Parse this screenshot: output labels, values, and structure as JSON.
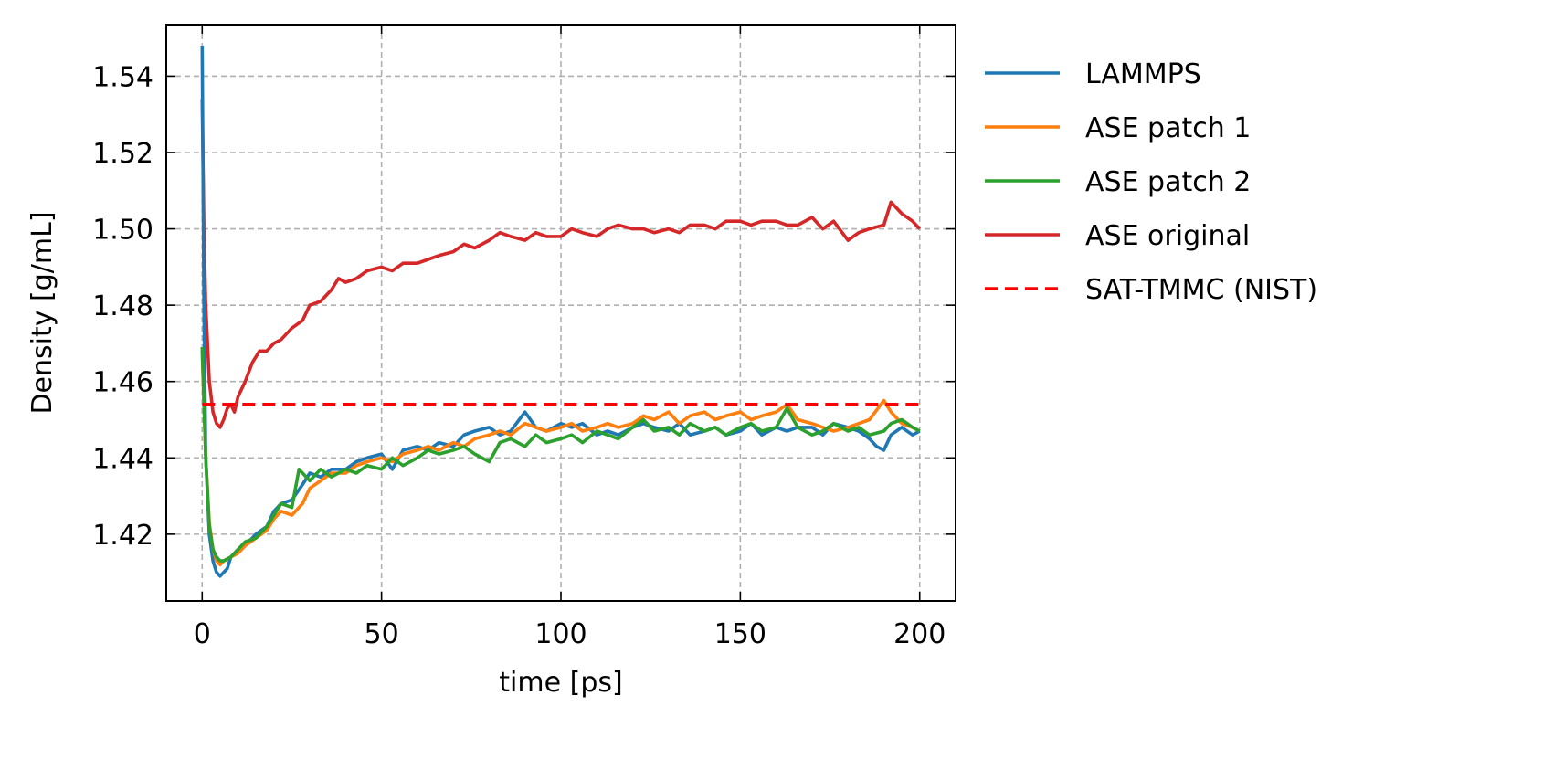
{
  "chart_data": {
    "type": "line",
    "title": "",
    "xlabel": "time [ps]",
    "ylabel": "Density [g/mL]",
    "xlim": [
      -10,
      210
    ],
    "ylim": [
      1.4025,
      1.5535
    ],
    "xticks": [
      0,
      50,
      100,
      150,
      200
    ],
    "xtick_labels": [
      "0",
      "50",
      "100",
      "150",
      "200"
    ],
    "yticks": [
      1.42,
      1.44,
      1.46,
      1.48,
      1.5,
      1.52,
      1.54
    ],
    "ytick_labels": [
      "1.42",
      "1.44",
      "1.46",
      "1.48",
      "1.50",
      "1.52",
      "1.54"
    ],
    "grid": true,
    "legend_position": "outside right, top",
    "series": [
      {
        "name": "LAMMPS",
        "color": "#1f77b4",
        "style": "solid",
        "x": [
          0,
          0.5,
          1,
          2,
          3,
          4,
          5,
          6,
          7,
          8,
          10,
          12,
          15,
          18,
          20,
          22,
          25,
          28,
          30,
          33,
          36,
          40,
          43,
          46,
          50,
          53,
          56,
          60,
          63,
          66,
          70,
          73,
          76,
          80,
          83,
          86,
          90,
          93,
          96,
          100,
          103,
          106,
          110,
          113,
          116,
          120,
          123,
          126,
          130,
          133,
          136,
          140,
          143,
          146,
          150,
          153,
          156,
          160,
          163,
          166,
          170,
          173,
          176,
          180,
          183,
          186,
          188,
          190,
          192,
          195,
          198,
          200
        ],
        "y": [
          1.548,
          1.48,
          1.44,
          1.42,
          1.413,
          1.41,
          1.409,
          1.41,
          1.411,
          1.414,
          1.416,
          1.417,
          1.42,
          1.422,
          1.426,
          1.428,
          1.429,
          1.433,
          1.436,
          1.435,
          1.437,
          1.437,
          1.439,
          1.44,
          1.441,
          1.437,
          1.442,
          1.443,
          1.442,
          1.444,
          1.443,
          1.446,
          1.447,
          1.448,
          1.446,
          1.447,
          1.452,
          1.448,
          1.447,
          1.449,
          1.448,
          1.449,
          1.446,
          1.447,
          1.446,
          1.448,
          1.449,
          1.448,
          1.447,
          1.449,
          1.446,
          1.447,
          1.448,
          1.446,
          1.447,
          1.449,
          1.446,
          1.448,
          1.447,
          1.448,
          1.448,
          1.446,
          1.449,
          1.448,
          1.447,
          1.445,
          1.443,
          1.442,
          1.446,
          1.448,
          1.446,
          1.447
        ]
      },
      {
        "name": "ASE patch 1",
        "color": "#ff7f0e",
        "style": "solid",
        "x": [
          0,
          1,
          2,
          3,
          4,
          5,
          6,
          8,
          10,
          12,
          15,
          18,
          20,
          22,
          25,
          28,
          30,
          33,
          36,
          40,
          43,
          46,
          50,
          53,
          56,
          60,
          63,
          66,
          70,
          73,
          76,
          80,
          83,
          86,
          90,
          93,
          96,
          100,
          103,
          106,
          110,
          113,
          116,
          120,
          123,
          126,
          130,
          133,
          136,
          140,
          143,
          146,
          150,
          153,
          156,
          160,
          163,
          166,
          170,
          173,
          176,
          180,
          183,
          186,
          190,
          192,
          195,
          198,
          200
        ],
        "y": [
          1.468,
          1.44,
          1.423,
          1.416,
          1.413,
          1.412,
          1.413,
          1.414,
          1.415,
          1.417,
          1.419,
          1.421,
          1.424,
          1.426,
          1.425,
          1.428,
          1.432,
          1.434,
          1.436,
          1.436,
          1.438,
          1.439,
          1.44,
          1.439,
          1.441,
          1.442,
          1.443,
          1.442,
          1.444,
          1.443,
          1.445,
          1.446,
          1.447,
          1.446,
          1.449,
          1.448,
          1.447,
          1.448,
          1.449,
          1.447,
          1.448,
          1.449,
          1.448,
          1.449,
          1.451,
          1.45,
          1.452,
          1.449,
          1.451,
          1.452,
          1.45,
          1.451,
          1.452,
          1.45,
          1.451,
          1.452,
          1.454,
          1.45,
          1.449,
          1.448,
          1.447,
          1.448,
          1.449,
          1.45,
          1.455,
          1.452,
          1.449,
          1.448,
          1.447
        ]
      },
      {
        "name": "ASE patch 2",
        "color": "#2ca02c",
        "style": "solid",
        "x": [
          0,
          1,
          2,
          3,
          4,
          5,
          6,
          8,
          10,
          12,
          15,
          18,
          20,
          22,
          25,
          27,
          30,
          33,
          36,
          40,
          43,
          46,
          50,
          53,
          56,
          60,
          63,
          66,
          70,
          73,
          76,
          80,
          83,
          86,
          90,
          93,
          96,
          100,
          103,
          106,
          110,
          113,
          116,
          120,
          123,
          126,
          130,
          133,
          136,
          140,
          143,
          146,
          150,
          153,
          156,
          160,
          163,
          166,
          170,
          173,
          176,
          180,
          183,
          186,
          190,
          192,
          195,
          198,
          200
        ],
        "y": [
          1.469,
          1.44,
          1.422,
          1.416,
          1.414,
          1.413,
          1.413,
          1.414,
          1.416,
          1.418,
          1.419,
          1.422,
          1.425,
          1.428,
          1.427,
          1.437,
          1.434,
          1.437,
          1.435,
          1.437,
          1.436,
          1.438,
          1.437,
          1.44,
          1.438,
          1.44,
          1.442,
          1.441,
          1.442,
          1.443,
          1.441,
          1.439,
          1.444,
          1.445,
          1.443,
          1.446,
          1.444,
          1.445,
          1.446,
          1.444,
          1.447,
          1.446,
          1.445,
          1.448,
          1.45,
          1.447,
          1.448,
          1.446,
          1.449,
          1.447,
          1.448,
          1.446,
          1.448,
          1.449,
          1.447,
          1.448,
          1.453,
          1.448,
          1.446,
          1.447,
          1.449,
          1.447,
          1.448,
          1.446,
          1.447,
          1.449,
          1.45,
          1.448,
          1.447
        ]
      },
      {
        "name": "ASE original",
        "color": "#d62728",
        "style": "solid",
        "x": [
          0,
          0.5,
          1,
          2,
          3,
          4,
          5,
          6,
          7,
          8,
          9,
          10,
          12,
          14,
          16,
          18,
          20,
          22,
          25,
          28,
          30,
          33,
          36,
          38,
          40,
          43,
          46,
          50,
          53,
          56,
          60,
          63,
          66,
          70,
          73,
          76,
          80,
          83,
          86,
          90,
          93,
          96,
          100,
          103,
          106,
          110,
          113,
          116,
          120,
          123,
          126,
          130,
          133,
          136,
          140,
          143,
          146,
          150,
          153,
          156,
          160,
          163,
          166,
          170,
          173,
          176,
          180,
          183,
          186,
          190,
          192,
          195,
          198,
          200
        ],
        "y": [
          1.534,
          1.5,
          1.48,
          1.46,
          1.452,
          1.449,
          1.448,
          1.45,
          1.453,
          1.454,
          1.452,
          1.456,
          1.46,
          1.465,
          1.468,
          1.468,
          1.47,
          1.471,
          1.474,
          1.476,
          1.48,
          1.481,
          1.484,
          1.487,
          1.486,
          1.487,
          1.489,
          1.49,
          1.489,
          1.491,
          1.491,
          1.492,
          1.493,
          1.494,
          1.496,
          1.495,
          1.497,
          1.499,
          1.498,
          1.497,
          1.499,
          1.498,
          1.498,
          1.5,
          1.499,
          1.498,
          1.5,
          1.501,
          1.5,
          1.5,
          1.499,
          1.5,
          1.499,
          1.501,
          1.501,
          1.5,
          1.502,
          1.502,
          1.501,
          1.502,
          1.502,
          1.501,
          1.501,
          1.503,
          1.5,
          1.502,
          1.497,
          1.499,
          1.5,
          1.501,
          1.507,
          1.504,
          1.502,
          1.5
        ]
      },
      {
        "name": "SAT-TMMC (NIST)",
        "color": "#ff0000",
        "style": "dashed",
        "x": [
          0,
          200
        ],
        "y": [
          1.454,
          1.454
        ]
      }
    ]
  }
}
